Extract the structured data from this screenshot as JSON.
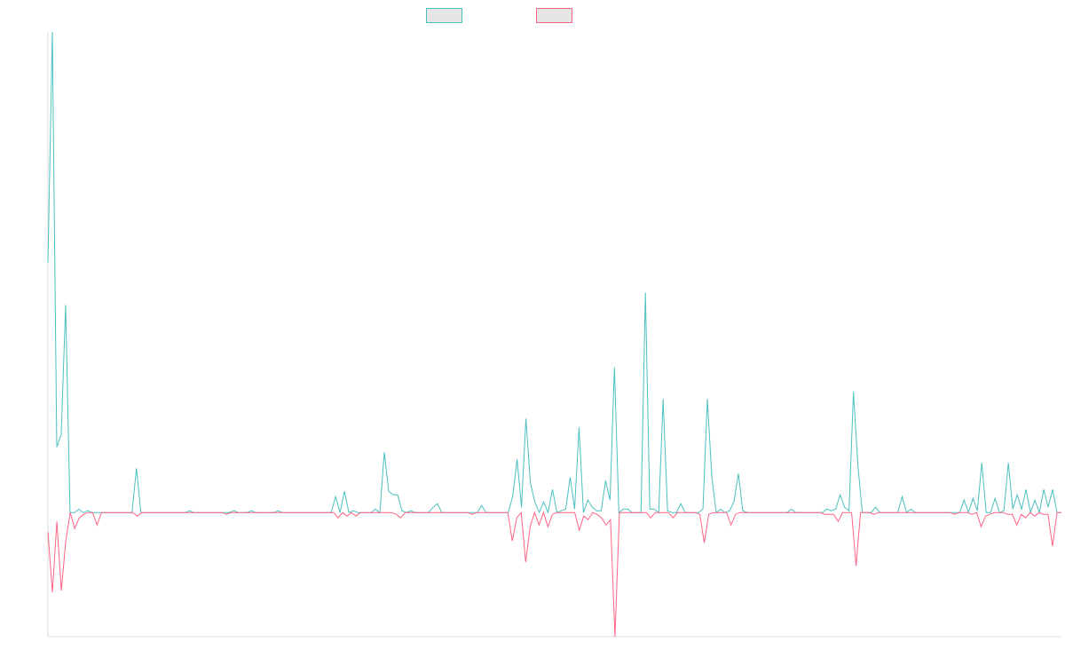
{
  "chart_data": {
    "type": "line",
    "title": "",
    "xlabel": "",
    "ylabel": "",
    "grid": false,
    "legend_position": "top-center",
    "ylim": [
      -70,
      271
    ],
    "series": [
      {
        "name": "",
        "color": "#4bc0c0",
        "values": [
          141,
          271,
          37,
          44,
          117,
          0,
          0,
          2,
          0,
          1,
          0,
          0,
          0,
          0,
          0,
          0,
          0,
          0,
          0,
          0,
          25,
          0,
          0,
          0,
          0,
          0,
          0,
          0,
          0,
          0,
          0,
          0,
          1,
          0,
          0,
          0,
          0,
          0,
          0,
          0,
          0,
          0,
          1,
          0,
          0,
          0,
          1,
          0,
          0,
          0,
          0,
          0,
          1,
          0,
          0,
          0,
          0,
          0,
          0,
          0,
          0,
          0,
          0,
          0,
          0,
          9,
          0,
          12,
          0,
          1,
          0,
          0,
          0,
          0,
          2,
          0,
          34,
          12,
          10,
          10,
          1,
          0,
          1,
          0,
          0,
          0,
          0,
          3,
          5,
          0,
          0,
          0,
          0,
          0,
          0,
          0,
          0,
          0,
          4,
          0,
          0,
          0,
          0,
          0,
          0,
          9,
          30,
          3,
          53,
          17,
          6,
          0,
          6,
          0,
          13,
          0,
          1,
          2,
          20,
          2,
          48,
          0,
          7,
          3,
          1,
          1,
          18,
          7,
          82,
          0,
          2,
          2,
          0,
          0,
          0,
          124,
          2,
          2,
          0,
          64,
          1,
          0,
          0,
          5,
          0,
          0,
          0,
          0,
          2,
          64,
          20,
          0,
          2,
          0,
          1,
          6,
          22,
          1,
          0,
          0,
          0,
          0,
          0,
          0,
          0,
          0,
          0,
          0,
          2,
          0,
          0,
          0,
          0,
          0,
          0,
          0,
          2,
          1,
          2,
          10,
          3,
          1,
          68,
          27,
          0,
          0,
          0,
          3,
          0,
          0,
          0,
          0,
          0,
          9,
          0,
          2,
          0,
          0,
          0,
          0,
          0,
          0,
          0,
          0,
          0,
          0,
          0,
          7,
          0,
          8,
          1,
          28,
          0,
          0,
          8,
          0,
          1,
          28,
          2,
          10,
          2,
          13,
          0,
          7,
          0,
          13,
          3,
          13,
          0,
          0
        ]
      },
      {
        "name": "",
        "color": "#ff6384",
        "values": [
          -11,
          -45,
          -5,
          -44,
          -16,
          0,
          -9,
          -3,
          -1,
          0,
          0,
          -7,
          0,
          0,
          0,
          0,
          0,
          0,
          0,
          0,
          -2,
          0,
          0,
          0,
          0,
          0,
          0,
          0,
          0,
          0,
          0,
          0,
          0,
          0,
          0,
          0,
          0,
          0,
          0,
          0,
          -1,
          0,
          0,
          0,
          0,
          0,
          0,
          0,
          0,
          0,
          0,
          0,
          0,
          0,
          0,
          0,
          0,
          0,
          0,
          0,
          0,
          0,
          0,
          0,
          0,
          -3,
          0,
          -2,
          0,
          -2,
          0,
          0,
          0,
          0,
          0,
          0,
          0,
          0,
          -1,
          -3,
          0,
          0,
          0,
          0,
          0,
          0,
          0,
          0,
          0,
          0,
          0,
          0,
          0,
          0,
          0,
          -1,
          0,
          0,
          0,
          0,
          0,
          0,
          0,
          0,
          -16,
          -3,
          0,
          -28,
          -8,
          0,
          -7,
          0,
          -8,
          -1,
          0,
          0,
          0,
          0,
          0,
          -10,
          -2,
          -4,
          0,
          -1,
          -3,
          -7,
          -4,
          -70,
          0,
          0,
          0,
          0,
          0,
          0,
          0,
          -3,
          0,
          0,
          0,
          0,
          -3,
          0,
          0,
          0,
          0,
          0,
          -1,
          -17,
          -1,
          0,
          0,
          0,
          0,
          -7,
          -1,
          0,
          0,
          0,
          0,
          0,
          0,
          0,
          0,
          0,
          0,
          0,
          0,
          0,
          0,
          0,
          0,
          0,
          0,
          0,
          -1,
          -1,
          -1,
          -5,
          0,
          0,
          0,
          -30,
          0,
          0,
          0,
          -1,
          0,
          0,
          0,
          0,
          0,
          0,
          0,
          0,
          0,
          0,
          0,
          0,
          0,
          0,
          0,
          0,
          0,
          -1,
          0,
          0,
          0,
          -1,
          0,
          -8,
          -2,
          -1,
          0,
          0,
          0,
          -1,
          -1,
          -7,
          -1,
          -3,
          0,
          -2,
          0,
          -1,
          -1,
          -19,
          0,
          0
        ]
      }
    ]
  }
}
